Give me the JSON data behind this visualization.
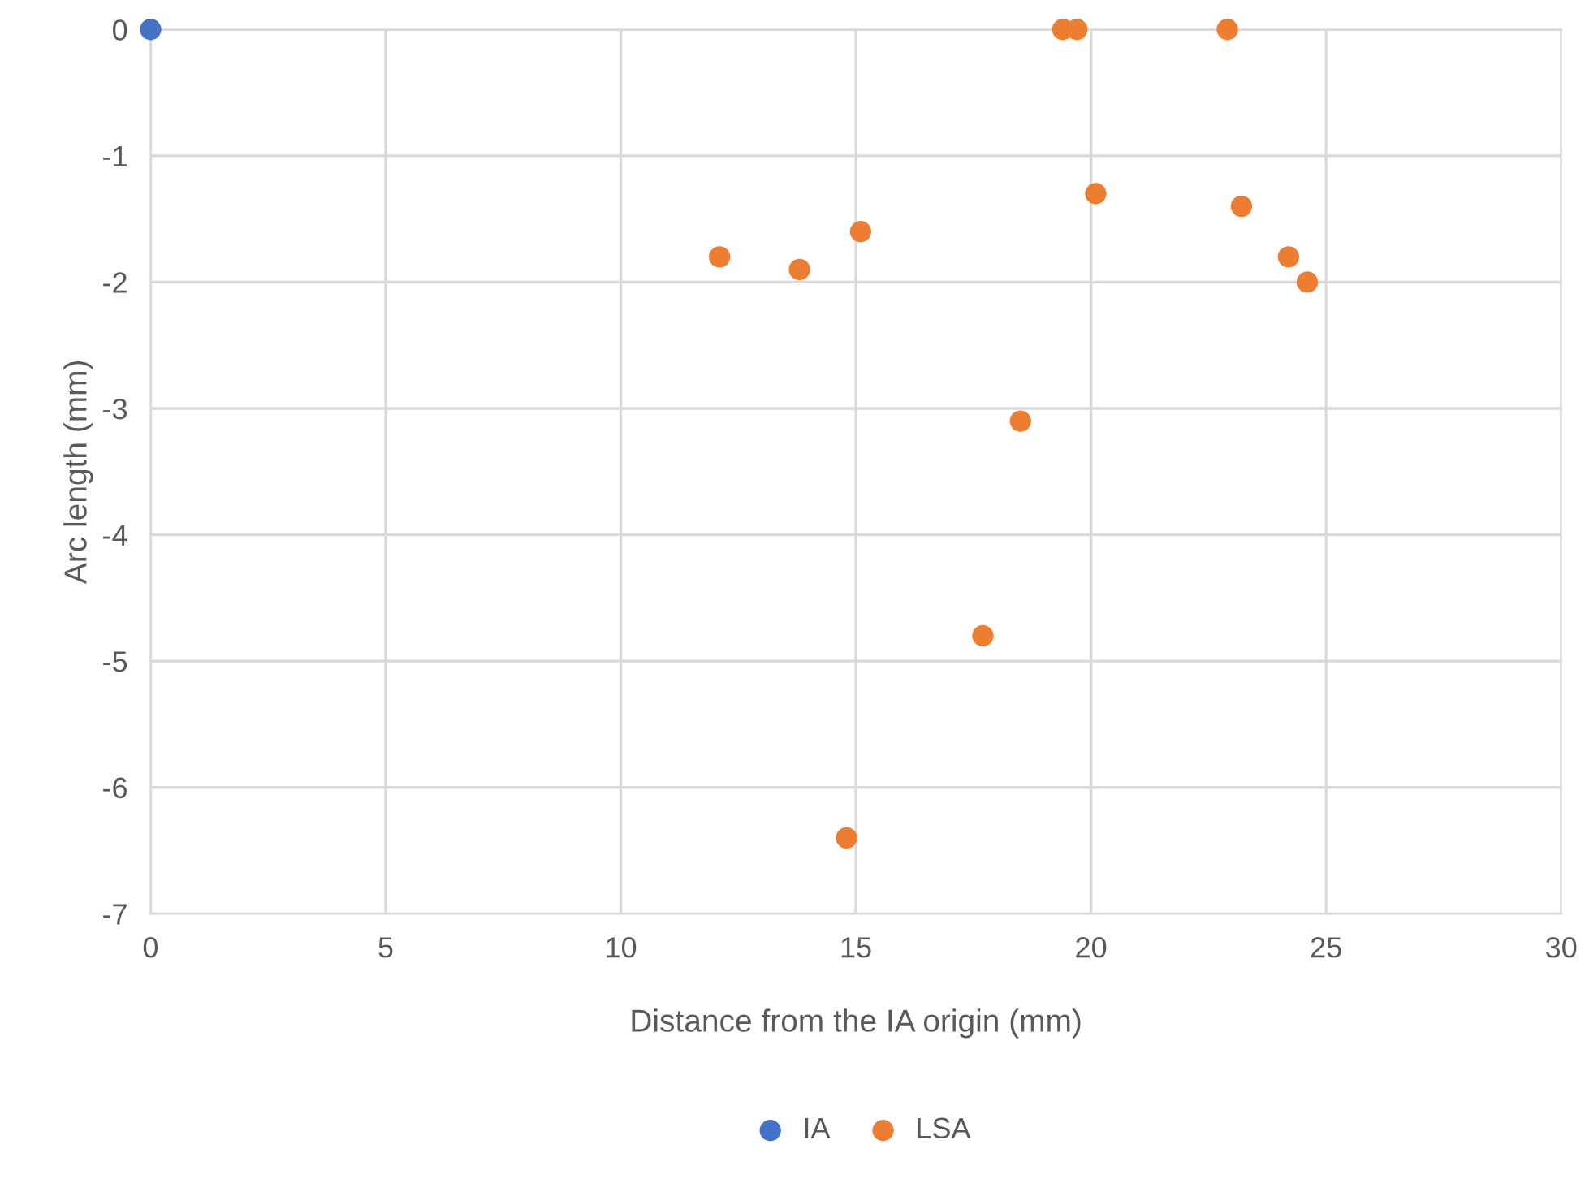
{
  "chart_data": {
    "type": "scatter",
    "xlabel": "Distance from the IA origin (mm)",
    "ylabel": "Arc length (mm)",
    "xlim": [
      0,
      30
    ],
    "xticks": [
      0,
      5,
      10,
      15,
      20,
      25,
      30
    ],
    "ylim": [
      -7,
      0
    ],
    "yticks": [
      -7,
      -6,
      -5,
      -4,
      -3,
      -2,
      -1,
      0
    ],
    "grid": true,
    "legend": "bottom",
    "marker": "circle",
    "series": [
      {
        "name": "IA",
        "color": "#4472c4",
        "x": [
          0
        ],
        "values": [
          0
        ]
      },
      {
        "name": "LSA",
        "color": "#ed7d31",
        "x": [
          12.1,
          13.8,
          15.1,
          14.8,
          17.7,
          18.5,
          19.4,
          19.7,
          20.1,
          22.9,
          23.2,
          24.2,
          24.6
        ],
        "values": [
          -1.8,
          -1.9,
          -1.6,
          -6.4,
          -4.8,
          -3.1,
          0,
          0,
          -1.3,
          0,
          -1.4,
          -1.8,
          -2.0
        ]
      }
    ]
  }
}
